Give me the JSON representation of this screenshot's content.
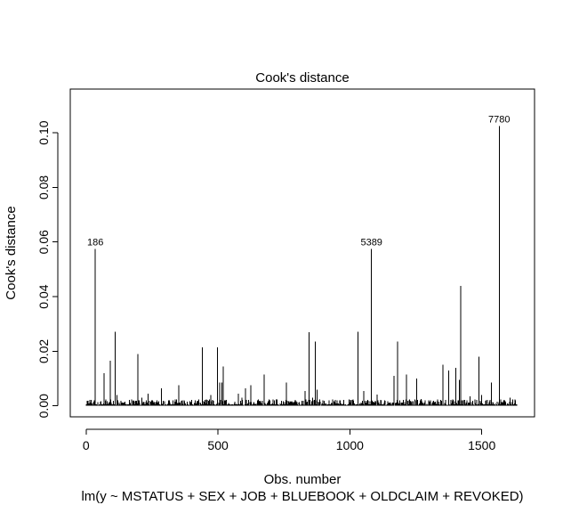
{
  "chart_data": {
    "type": "bar",
    "title": "Cook's distance",
    "xlabel": "Obs. number",
    "sublabel": "lm(y ~ MSTATUS + SEX + JOB + BLUEBOOK + OLDCLAIM + REVOKED)",
    "ylabel": "Cook's distance",
    "xlim": [
      -60,
      1700
    ],
    "ylim": [
      -0.004,
      0.116
    ],
    "xticks": [
      0,
      500,
      1000,
      1500
    ],
    "xtick_labels": [
      "0",
      "500",
      "1000",
      "1500"
    ],
    "yticks": [
      0.0,
      0.02,
      0.04,
      0.06,
      0.08,
      0.1
    ],
    "ytick_labels": [
      "0.00",
      "0.02",
      "0.04",
      "0.06",
      "0.08",
      "0.10"
    ],
    "n_obs": 1632,
    "spikes": [
      [
        35,
        0.0575
      ],
      [
        68,
        0.012
      ],
      [
        92,
        0.0165
      ],
      [
        110,
        0.0272
      ],
      [
        117,
        0.004
      ],
      [
        196,
        0.019
      ],
      [
        212,
        0.003
      ],
      [
        235,
        0.0045
      ],
      [
        285,
        0.0065
      ],
      [
        352,
        0.0075
      ],
      [
        440,
        0.0215
      ],
      [
        473,
        0.004
      ],
      [
        498,
        0.0215
      ],
      [
        506,
        0.0085
      ],
      [
        515,
        0.0085
      ],
      [
        520,
        0.0145
      ],
      [
        577,
        0.0045
      ],
      [
        591,
        0.003
      ],
      [
        605,
        0.0065
      ],
      [
        625,
        0.0075
      ],
      [
        675,
        0.0115
      ],
      [
        760,
        0.0085
      ],
      [
        830,
        0.0055
      ],
      [
        845,
        0.027
      ],
      [
        858,
        0.003
      ],
      [
        869,
        0.0235
      ],
      [
        875,
        0.006
      ],
      [
        1030,
        0.0272
      ],
      [
        1052,
        0.0055
      ],
      [
        1082,
        0.0575
      ],
      [
        1104,
        0.0042
      ],
      [
        1168,
        0.011
      ],
      [
        1180,
        0.0235
      ],
      [
        1215,
        0.0115
      ],
      [
        1253,
        0.01
      ],
      [
        1270,
        0.0025
      ],
      [
        1352,
        0.015
      ],
      [
        1375,
        0.013
      ],
      [
        1402,
        0.014
      ],
      [
        1415,
        0.0095
      ],
      [
        1420,
        0.044
      ],
      [
        1456,
        0.0035
      ],
      [
        1490,
        0.018
      ],
      [
        1499,
        0.004
      ],
      [
        1537,
        0.0085
      ],
      [
        1566,
        0.1025
      ],
      [
        1607,
        0.003
      ]
    ],
    "annotations": [
      {
        "label": "186",
        "x": 35,
        "y": 0.0575
      },
      {
        "label": "5389",
        "x": 1082,
        "y": 0.0575
      },
      {
        "label": "7780",
        "x": 1566,
        "y": 0.1025
      }
    ]
  }
}
